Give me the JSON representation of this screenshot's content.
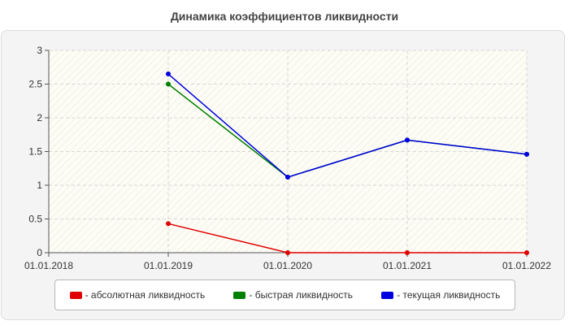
{
  "chart_data": {
    "type": "line",
    "title": "Динамика коэффициентов ликвидности",
    "xlabel": "",
    "ylabel": "",
    "x": [
      "01.01.2018",
      "01.01.2019",
      "01.01.2020",
      "01.01.2021",
      "01.01.2022"
    ],
    "ylim": [
      0,
      3
    ],
    "yticks": [
      "0",
      "0.5",
      "1",
      "1.5",
      "2",
      "2.5",
      "3"
    ],
    "grid": true,
    "legend_position": "bottom",
    "series": [
      {
        "name": "- абсолютная ликвидность",
        "color": "#e00000",
        "values": [
          null,
          0.43,
          0.0,
          0.0,
          0.0
        ]
      },
      {
        "name": "- быстрая ликвидность",
        "color": "#008000",
        "values": [
          null,
          2.5,
          1.12,
          1.67,
          1.46
        ]
      },
      {
        "name": "- текущая ликвидность",
        "color": "#0000e0",
        "values": [
          null,
          2.65,
          1.12,
          1.67,
          1.46
        ]
      }
    ]
  }
}
